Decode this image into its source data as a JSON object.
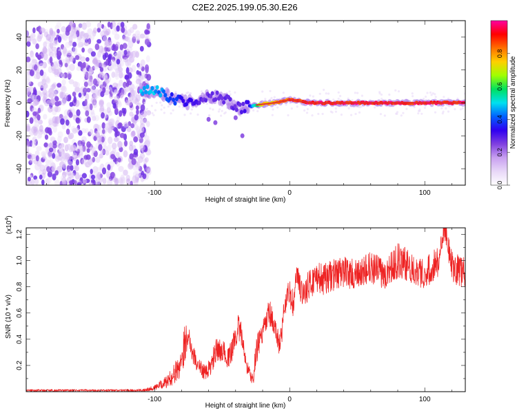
{
  "title": "C2E2.2025.199.05.30.E26",
  "colors": {
    "snr_line": "#ee2222",
    "band_line": "#e03030",
    "axis": "#000000",
    "colormap": [
      "#ffffff",
      "#e8d8f8",
      "#c8a0f0",
      "#8040e0",
      "#3000f0",
      "#0060ff",
      "#00e0f0",
      "#00e060",
      "#a0ff00",
      "#ffd000",
      "#ff7000",
      "#ff0000",
      "#ff00a0"
    ]
  },
  "chart_data": [
    {
      "id": "spectrogram",
      "type": "heatmap",
      "xlabel": "Height of straight line (km)",
      "ylabel": "Frequency (Hz)",
      "xlim": [
        -195,
        130
      ],
      "ylim": [
        -50,
        50
      ],
      "xticks": [
        -100,
        0,
        100
      ],
      "yticks": [
        -40,
        -20,
        0,
        20,
        40
      ],
      "colorbar": {
        "label": "Normalized spectral amplitude",
        "range": [
          0,
          1
        ],
        "ticks": [
          "0.0",
          "0.2",
          "0.4",
          "0.6",
          "0.8"
        ]
      },
      "noise_region": {
        "x": [
          -195,
          -110
        ],
        "y": [
          -50,
          48
        ],
        "amplitude": 0.15
      },
      "signal_track": [
        {
          "x": -110,
          "y": 8,
          "amp": 0.52
        },
        {
          "x": -100,
          "y": 7,
          "amp": 0.5
        },
        {
          "x": -92,
          "y": 5,
          "amp": 0.45
        },
        {
          "x": -85,
          "y": 2,
          "amp": 0.4
        },
        {
          "x": -75,
          "y": 0,
          "amp": 0.35
        },
        {
          "x": -65,
          "y": 3,
          "amp": 0.3
        },
        {
          "x": -55,
          "y": 4,
          "amp": 0.3
        },
        {
          "x": -45,
          "y": 1,
          "amp": 0.3
        },
        {
          "x": -38,
          "y": -3,
          "amp": 0.3
        },
        {
          "x": -30,
          "y": -2,
          "amp": 0.35
        },
        {
          "x": -22,
          "y": -1,
          "amp": 0.75
        },
        {
          "x": -12,
          "y": 0,
          "amp": 0.85
        },
        {
          "x": -5,
          "y": 1,
          "amp": 0.9
        },
        {
          "x": 0,
          "y": 2,
          "amp": 0.95
        },
        {
          "x": 8,
          "y": 1,
          "amp": 0.95
        },
        {
          "x": 15,
          "y": 0,
          "amp": 1.0
        },
        {
          "x": 130,
          "y": 0,
          "amp": 1.0
        }
      ]
    },
    {
      "id": "snr",
      "type": "line",
      "xlabel": "Height of straight line (km)",
      "ylabel": "SNR (10 * v/v)",
      "scale_label": "(x10",
      "scale_exp": "4",
      "scale_close": ")",
      "xlim": [
        -195,
        130
      ],
      "ylim": [
        0,
        1.25
      ],
      "xticks": [
        -100,
        0,
        100
      ],
      "yticks": [
        "0.2",
        "0.4",
        "0.6",
        "0.8",
        "1.0",
        "1.2"
      ],
      "series": [
        {
          "x": [
            -195,
            -160,
            -130,
            -110,
            -100,
            -90,
            -82,
            -78,
            -75,
            -72,
            -68,
            -62,
            -58,
            -55,
            -50,
            -45,
            -42,
            -38,
            -35,
            -32,
            -30,
            -27,
            -25,
            -22,
            -20,
            -15,
            -12,
            -10,
            -7,
            -5,
            -3,
            0,
            3,
            5,
            8,
            10,
            15,
            20,
            25,
            30,
            40,
            50,
            60,
            70,
            80,
            90,
            100,
            110,
            115,
            120,
            130
          ],
          "y": [
            0.01,
            0.01,
            0.01,
            0.01,
            0.03,
            0.08,
            0.18,
            0.35,
            0.45,
            0.3,
            0.2,
            0.14,
            0.2,
            0.3,
            0.32,
            0.25,
            0.35,
            0.5,
            0.4,
            0.2,
            0.15,
            0.08,
            0.3,
            0.4,
            0.45,
            0.6,
            0.5,
            0.45,
            0.35,
            0.55,
            0.7,
            0.75,
            0.65,
            0.9,
            0.78,
            0.75,
            0.82,
            0.88,
            0.85,
            0.88,
            0.92,
            0.88,
            0.95,
            0.9,
            1.0,
            0.95,
            0.9,
            1.0,
            1.25,
            0.95,
            0.9
          ],
          "noise": [
            0.008,
            0.008,
            0.008,
            0.01,
            0.02,
            0.05,
            0.1,
            0.15,
            0.08,
            0.08,
            0.06,
            0.06,
            0.08,
            0.1,
            0.08,
            0.08,
            0.1,
            0.1,
            0.1,
            0.05,
            0.05,
            0.05,
            0.1,
            0.1,
            0.08,
            0.12,
            0.1,
            0.08,
            0.1,
            0.12,
            0.12,
            0.1,
            0.12,
            0.1,
            0.1,
            0.1,
            0.12,
            0.12,
            0.12,
            0.12,
            0.12,
            0.12,
            0.12,
            0.12,
            0.14,
            0.12,
            0.12,
            0.12,
            0.08,
            0.12,
            0.12
          ]
        }
      ]
    }
  ]
}
